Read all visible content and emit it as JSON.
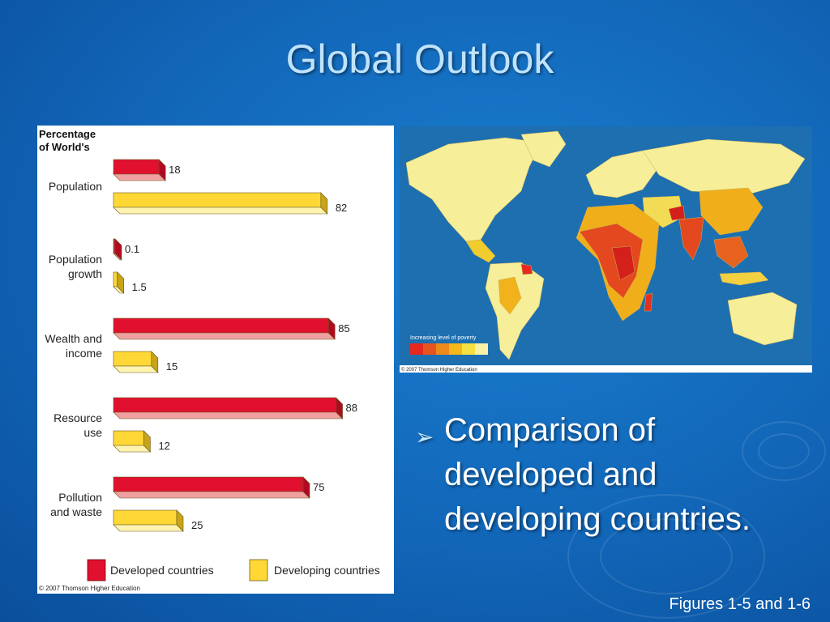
{
  "slide": {
    "title": "Global Outlook",
    "bullet": "Comparison of developed and developing countries.",
    "caption": "Figures 1-5 and 1-6"
  },
  "chart_data": {
    "type": "bar",
    "ylabel_line1": "Percentage",
    "ylabel_line2": "of World's",
    "xlim": [
      0,
      100
    ],
    "categories": [
      {
        "lines": [
          "Population"
        ],
        "developed": 18,
        "developed_label": "18",
        "developing": 82,
        "developing_label": "82"
      },
      {
        "lines": [
          "Population",
          "growth"
        ],
        "developed": 0.1,
        "developed_label": "0.1",
        "developing": 1.5,
        "developing_label": "1.5"
      },
      {
        "lines": [
          "Wealth and",
          "income"
        ],
        "developed": 85,
        "developed_label": "85",
        "developing": 15,
        "developing_label": "15"
      },
      {
        "lines": [
          "Resource",
          "use"
        ],
        "developed": 88,
        "developed_label": "88",
        "developing": 12,
        "developing_label": "12"
      },
      {
        "lines": [
          "Pollution",
          "and waste"
        ],
        "developed": 75,
        "developed_label": "75",
        "developing": 25,
        "developing_label": "25"
      }
    ],
    "series": [
      {
        "name": "Developed countries",
        "color": "#e0102e"
      },
      {
        "name": "Developing countries",
        "color": "#ffd836"
      }
    ],
    "legend_position": "bottom",
    "credit": "© 2007 Thomson Higher Education"
  },
  "map": {
    "legend_title": "Increasing level of poverty",
    "legend_colors": [
      "#e52920",
      "#e8541f",
      "#ee8a1c",
      "#f6b71a",
      "#f7e041",
      "#f9f2a6"
    ],
    "credit": "© 2007 Thomson Higher Education",
    "ocean_color": "#1d6fb0",
    "land_color": "#f6ee98"
  }
}
